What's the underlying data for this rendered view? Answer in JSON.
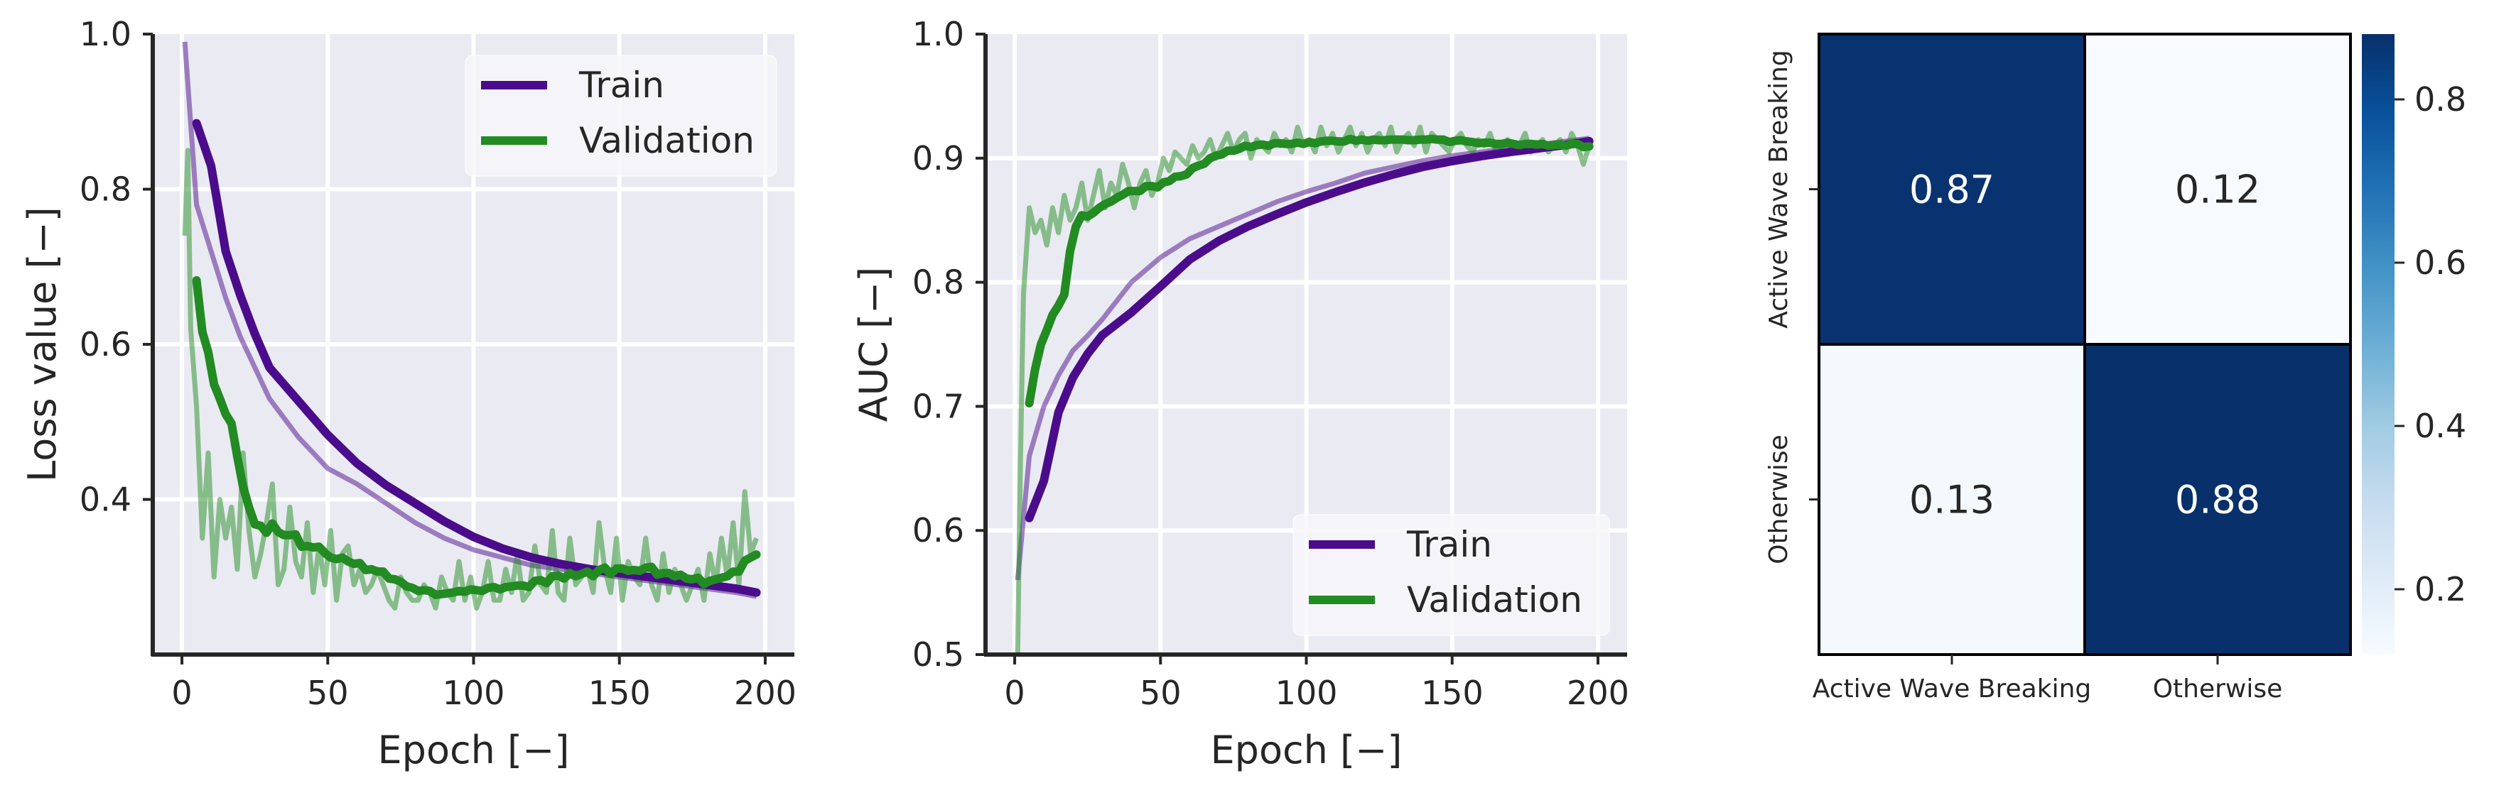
{
  "colors": {
    "train": "#4b0c8c",
    "validation": "#228b22",
    "plot_bg": "#eaeaf2",
    "grid": "#ffffff",
    "axis": "#262626",
    "cmap_low": "#f7fbff",
    "cmap_high": "#08306b"
  },
  "chart_data": [
    {
      "type": "line",
      "title": "",
      "xlabel": "Epoch [−]",
      "ylabel": "Loss value [−]",
      "xlim": [
        -10,
        210
      ],
      "ylim": [
        0.2,
        1.0
      ],
      "xticks": [
        "0",
        "50",
        "100",
        "150",
        "200"
      ],
      "yticks": [
        "0.4",
        "0.6",
        "0.8",
        "1.0"
      ],
      "grid": true,
      "legend_position": "top-right",
      "smoothing_window": 10,
      "series": [
        {
          "name": "Train",
          "x": [
            1,
            5,
            10,
            15,
            20,
            25,
            30,
            40,
            50,
            60,
            70,
            80,
            90,
            100,
            110,
            120,
            130,
            140,
            150,
            160,
            170,
            180,
            190,
            197
          ],
          "values": [
            0.99,
            0.78,
            0.72,
            0.66,
            0.61,
            0.57,
            0.53,
            0.48,
            0.44,
            0.42,
            0.395,
            0.37,
            0.35,
            0.335,
            0.325,
            0.315,
            0.31,
            0.305,
            0.3,
            0.295,
            0.29,
            0.285,
            0.28,
            0.275
          ]
        },
        {
          "name": "Validation",
          "x": [
            1,
            2,
            3,
            5,
            7,
            9,
            11,
            13,
            15,
            17,
            19,
            21,
            23,
            25,
            27,
            29,
            31,
            33,
            35,
            37,
            39,
            41,
            43,
            45,
            47,
            49,
            51,
            53,
            55,
            57,
            59,
            61,
            63,
            65,
            67,
            69,
            71,
            73,
            75,
            77,
            79,
            81,
            83,
            85,
            87,
            89,
            91,
            93,
            95,
            97,
            99,
            101,
            103,
            105,
            107,
            109,
            111,
            113,
            115,
            117,
            119,
            121,
            123,
            125,
            127,
            129,
            131,
            133,
            135,
            137,
            139,
            141,
            143,
            145,
            147,
            149,
            151,
            153,
            155,
            157,
            159,
            161,
            163,
            165,
            167,
            169,
            171,
            173,
            175,
            177,
            179,
            181,
            183,
            185,
            187,
            189,
            191,
            193,
            195,
            197
          ],
          "values": [
            0.74,
            0.85,
            0.62,
            0.52,
            0.35,
            0.46,
            0.3,
            0.4,
            0.35,
            0.39,
            0.31,
            0.46,
            0.36,
            0.3,
            0.33,
            0.37,
            0.42,
            0.29,
            0.31,
            0.39,
            0.32,
            0.3,
            0.37,
            0.28,
            0.34,
            0.29,
            0.36,
            0.27,
            0.33,
            0.34,
            0.29,
            0.31,
            0.28,
            0.29,
            0.31,
            0.29,
            0.27,
            0.26,
            0.3,
            0.28,
            0.27,
            0.27,
            0.29,
            0.28,
            0.26,
            0.3,
            0.28,
            0.27,
            0.32,
            0.27,
            0.3,
            0.26,
            0.28,
            0.32,
            0.27,
            0.27,
            0.31,
            0.28,
            0.33,
            0.27,
            0.28,
            0.34,
            0.29,
            0.28,
            0.36,
            0.28,
            0.27,
            0.35,
            0.29,
            0.3,
            0.31,
            0.28,
            0.37,
            0.31,
            0.28,
            0.35,
            0.27,
            0.32,
            0.3,
            0.29,
            0.35,
            0.29,
            0.27,
            0.33,
            0.28,
            0.31,
            0.29,
            0.27,
            0.29,
            0.31,
            0.27,
            0.33,
            0.29,
            0.35,
            0.3,
            0.37,
            0.29,
            0.41,
            0.33,
            0.35
          ]
        }
      ]
    },
    {
      "type": "line",
      "title": "",
      "xlabel": "Epoch [−]",
      "ylabel": "AUC [−]",
      "xlim": [
        -10,
        210
      ],
      "ylim": [
        0.5,
        1.0
      ],
      "xticks": [
        "0",
        "50",
        "100",
        "150",
        "200"
      ],
      "yticks": [
        "0.5",
        "0.6",
        "0.7",
        "0.8",
        "0.9",
        "1.0"
      ],
      "grid": true,
      "legend_position": "bottom-right",
      "smoothing_window": 10,
      "series": [
        {
          "name": "Train",
          "x": [
            1,
            5,
            10,
            15,
            20,
            25,
            30,
            40,
            50,
            60,
            70,
            80,
            90,
            100,
            110,
            120,
            130,
            140,
            150,
            160,
            170,
            180,
            190,
            197
          ],
          "values": [
            0.56,
            0.66,
            0.7,
            0.725,
            0.745,
            0.757,
            0.77,
            0.8,
            0.82,
            0.835,
            0.845,
            0.855,
            0.865,
            0.873,
            0.88,
            0.888,
            0.893,
            0.898,
            0.902,
            0.905,
            0.908,
            0.911,
            0.914,
            0.916
          ]
        },
        {
          "name": "Validation",
          "x": [
            1,
            2,
            3,
            5,
            7,
            9,
            11,
            13,
            15,
            17,
            19,
            21,
            23,
            25,
            27,
            29,
            31,
            33,
            35,
            37,
            39,
            41,
            43,
            45,
            47,
            49,
            51,
            53,
            55,
            57,
            59,
            61,
            63,
            65,
            67,
            69,
            71,
            73,
            75,
            77,
            79,
            81,
            83,
            85,
            87,
            89,
            91,
            93,
            95,
            97,
            99,
            101,
            103,
            105,
            107,
            109,
            111,
            113,
            115,
            117,
            119,
            121,
            123,
            125,
            127,
            129,
            131,
            133,
            135,
            137,
            139,
            141,
            143,
            145,
            147,
            149,
            151,
            153,
            155,
            157,
            159,
            161,
            163,
            165,
            167,
            169,
            171,
            173,
            175,
            177,
            179,
            181,
            183,
            185,
            187,
            189,
            191,
            193,
            195,
            197
          ],
          "values": [
            0.5,
            0.66,
            0.79,
            0.86,
            0.84,
            0.85,
            0.83,
            0.86,
            0.84,
            0.87,
            0.85,
            0.86,
            0.88,
            0.85,
            0.87,
            0.89,
            0.86,
            0.88,
            0.87,
            0.895,
            0.88,
            0.86,
            0.88,
            0.89,
            0.87,
            0.88,
            0.9,
            0.89,
            0.905,
            0.9,
            0.895,
            0.91,
            0.9,
            0.905,
            0.915,
            0.9,
            0.91,
            0.92,
            0.905,
            0.915,
            0.92,
            0.9,
            0.915,
            0.91,
            0.905,
            0.92,
            0.91,
            0.915,
            0.905,
            0.925,
            0.91,
            0.915,
            0.905,
            0.925,
            0.91,
            0.92,
            0.905,
            0.915,
            0.925,
            0.91,
            0.92,
            0.905,
            0.915,
            0.92,
            0.91,
            0.925,
            0.905,
            0.915,
            0.92,
            0.91,
            0.925,
            0.905,
            0.92,
            0.915,
            0.91,
            0.905,
            0.915,
            0.92,
            0.91,
            0.905,
            0.915,
            0.91,
            0.92,
            0.905,
            0.91,
            0.915,
            0.905,
            0.91,
            0.92,
            0.905,
            0.91,
            0.915,
            0.905,
            0.91,
            0.915,
            0.905,
            0.92,
            0.91,
            0.895,
            0.91
          ]
        }
      ]
    },
    {
      "type": "heatmap",
      "title": "",
      "row_labels": [
        "Active Wave Breaking",
        "Otherwise"
      ],
      "col_labels": [
        "Active Wave Breaking",
        "Otherwise"
      ],
      "values": [
        [
          0.87,
          0.12
        ],
        [
          0.13,
          0.88
        ]
      ],
      "annotations": [
        [
          "0.87",
          "0.12"
        ],
        [
          "0.13",
          "0.88"
        ]
      ],
      "colorbar": {
        "range": [
          0.12,
          0.88
        ],
        "ticks": [
          "0.2",
          "0.4",
          "0.6",
          "0.8"
        ],
        "tick_values": [
          0.2,
          0.4,
          0.6,
          0.8
        ]
      }
    }
  ]
}
